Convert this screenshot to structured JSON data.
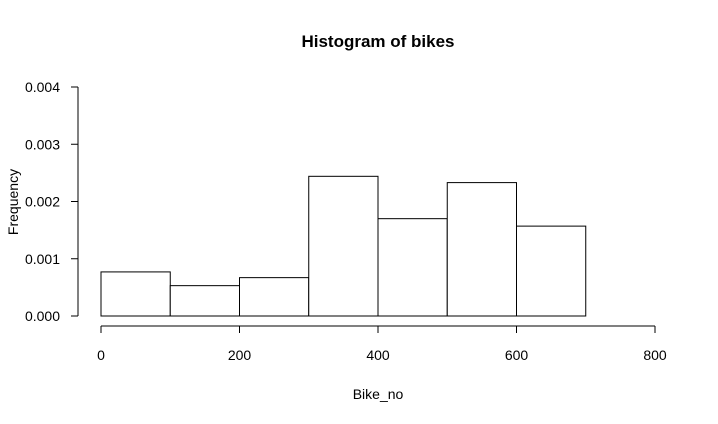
{
  "chart_data": {
    "type": "bar",
    "title": "Histogram of bikes",
    "xlabel": "Bike_no",
    "ylabel": "Frequency",
    "xlim": [
      0,
      800
    ],
    "ylim": [
      0,
      0.004
    ],
    "x_ticks": [
      0,
      200,
      400,
      600,
      800
    ],
    "y_ticks": [
      0,
      0.001,
      0.002,
      0.003,
      0.004
    ],
    "x_tick_labels": [
      "0",
      "200",
      "400",
      "600",
      "800"
    ],
    "y_tick_labels": [
      "0.000",
      "0.001",
      "0.002",
      "0.003",
      "0.004"
    ],
    "bins": [
      {
        "start": 0,
        "end": 100,
        "value": 0.00077
      },
      {
        "start": 100,
        "end": 200,
        "value": 0.00053
      },
      {
        "start": 200,
        "end": 300,
        "value": 0.00067
      },
      {
        "start": 300,
        "end": 400,
        "value": 0.00244
      },
      {
        "start": 400,
        "end": 500,
        "value": 0.0017
      },
      {
        "start": 500,
        "end": 600,
        "value": 0.00233
      },
      {
        "start": 600,
        "end": 700,
        "value": 0.00157
      }
    ],
    "grid": false,
    "bar_fill": "#ffffff",
    "bar_stroke": "#000000"
  }
}
